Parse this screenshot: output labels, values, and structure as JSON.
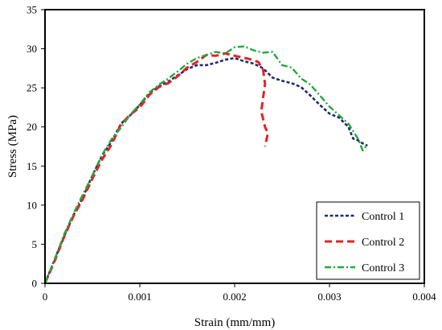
{
  "chart_data": {
    "type": "line",
    "title": "",
    "xlabel": "Strain (mm/mm)",
    "ylabel": "Stress (MPa)",
    "xlim": [
      0,
      0.004
    ],
    "ylim": [
      0,
      35
    ],
    "x_ticks": [
      0,
      0.001,
      0.002,
      0.003,
      0.004
    ],
    "x_tick_labels": [
      "0",
      "0.001",
      "0.002",
      "0.003",
      "0.004"
    ],
    "y_ticks": [
      0,
      5,
      10,
      15,
      20,
      25,
      30,
      35
    ],
    "y_tick_labels": [
      "0",
      "5",
      "10",
      "15",
      "20",
      "25",
      "30",
      "35"
    ],
    "grid": false,
    "legend_position": "bottom-right",
    "series": [
      {
        "name": "Control 1",
        "color": "#1f2d6b",
        "dash": "short-dash",
        "x": [
          0,
          0.0001,
          0.0002,
          0.0003,
          0.0004,
          0.0005,
          0.0006,
          0.0007,
          0.0008,
          0.0009,
          0.001,
          0.0011,
          0.0012,
          0.0013,
          0.0014,
          0.0015,
          0.0016,
          0.0017,
          0.0018,
          0.0019,
          0.002,
          0.0021,
          0.0022,
          0.0023,
          0.0024,
          0.0025,
          0.0026,
          0.0027,
          0.0028,
          0.0029,
          0.003,
          0.0031,
          0.0032,
          0.00325,
          0.0033,
          0.00335,
          0.0034
        ],
        "y": [
          0,
          3,
          6,
          8.7,
          11,
          13.8,
          16.3,
          18.1,
          20.4,
          21.5,
          22.8,
          24.3,
          25.2,
          25.8,
          26.6,
          27.4,
          27.9,
          27.9,
          28.2,
          28.6,
          28.8,
          28.4,
          28.1,
          27.5,
          26.3,
          25.9,
          25.6,
          25.1,
          24,
          22.8,
          21.7,
          21.2,
          20,
          18.5,
          18.3,
          17.9,
          17.6
        ]
      },
      {
        "name": "Control 2",
        "color": "#e32322",
        "dash": "long-dash",
        "x": [
          0,
          0.0001,
          0.0002,
          0.0003,
          0.0004,
          0.0005,
          0.0006,
          0.0007,
          0.0008,
          0.0009,
          0.001,
          0.0011,
          0.0012,
          0.0013,
          0.0014,
          0.0015,
          0.0016,
          0.0017,
          0.0018,
          0.0019,
          0.002,
          0.00215,
          0.00225,
          0.0023,
          0.00232,
          0.00228,
          0.00232,
          0.00235,
          0.00232
        ],
        "y": [
          0,
          2.8,
          5.9,
          8.6,
          10.8,
          13.4,
          15.8,
          17.7,
          20.3,
          21.6,
          22.5,
          24.1,
          25.1,
          25.6,
          26.5,
          27.6,
          28.3,
          29.2,
          29.1,
          29.4,
          29.1,
          28.7,
          28.3,
          27.3,
          25.5,
          22,
          20,
          19.2,
          17.5
        ]
      },
      {
        "name": "Control 3",
        "color": "#22a83a",
        "dash": "dash-dot",
        "x": [
          0,
          0.0001,
          0.0002,
          0.0003,
          0.0004,
          0.0005,
          0.0006,
          0.0007,
          0.0008,
          0.0009,
          0.001,
          0.0011,
          0.0012,
          0.0013,
          0.0014,
          0.0015,
          0.0016,
          0.0017,
          0.0018,
          0.0019,
          0.002,
          0.0021,
          0.0022,
          0.0023,
          0.0024,
          0.0025,
          0.0026,
          0.0027,
          0.0028,
          0.0029,
          0.003,
          0.0031,
          0.0032,
          0.0033,
          0.00335,
          0.0034
        ],
        "y": [
          0,
          3,
          6.2,
          8.9,
          11.4,
          13.8,
          16.4,
          18.4,
          19.9,
          21.6,
          22.9,
          24.4,
          25.4,
          26.2,
          27.1,
          28.1,
          28.8,
          29.2,
          29.6,
          29.4,
          30.2,
          30.3,
          29.8,
          29.5,
          29.6,
          27.9,
          27.6,
          26.2,
          25.4,
          24,
          22.6,
          21.5,
          20.4,
          18.5,
          17,
          17.7
        ]
      }
    ]
  }
}
